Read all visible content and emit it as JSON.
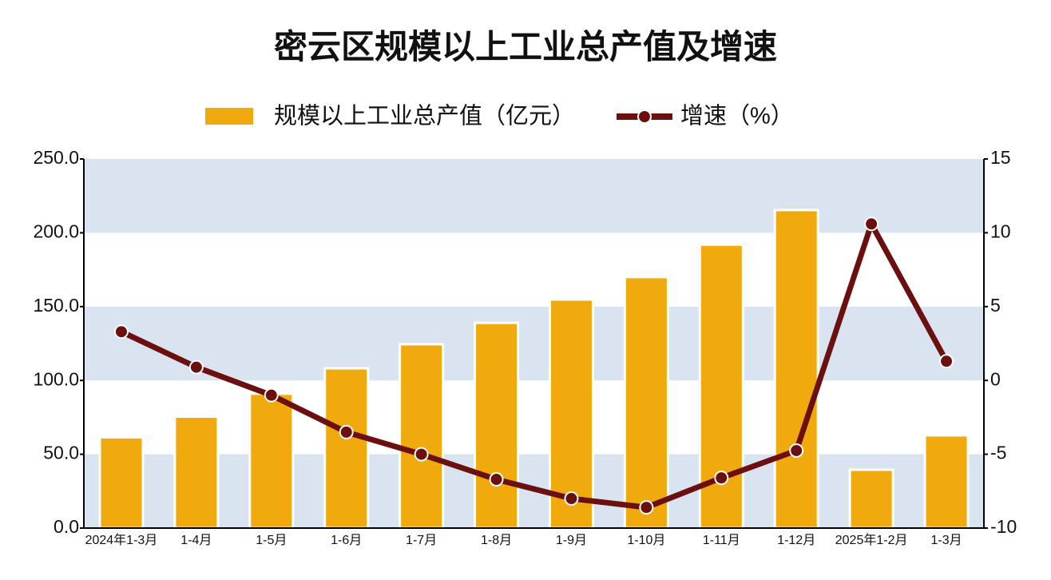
{
  "chart_data": {
    "type": "bar",
    "title": "密云区规模以上工业总产值及增速",
    "categories": [
      "2024年1-3月",
      "1-4月",
      "1-5月",
      "1-6月",
      "1-7月",
      "1-8月",
      "1-9月",
      "1-10月",
      "1-11月",
      "1-12月",
      "2025年1-2月",
      "1-3月"
    ],
    "series": [
      {
        "name": "规模以上工业总产值（亿元）",
        "type": "bar",
        "color": "#f0aa0e",
        "values": [
          61.5,
          75.5,
          91,
          108.2,
          124.5,
          139,
          154.8,
          170,
          192,
          215.4,
          39.5,
          62.8
        ]
      },
      {
        "name": "增速（%）",
        "type": "line",
        "axis": "y2",
        "color": "#6b0f0f",
        "values": [
          3.3,
          0.9,
          -1.0,
          -3.5,
          -5.0,
          -6.7,
          -8.0,
          -8.6,
          -6.6,
          -4.75,
          10.6,
          1.3
        ]
      }
    ],
    "ylim": [
      0,
      250
    ],
    "yticks": [
      {
        "value": 0,
        "label": "0.0"
      },
      {
        "value": 50,
        "label": "50.0"
      },
      {
        "value": 100,
        "label": "100.0"
      },
      {
        "value": 150,
        "label": "150.0"
      },
      {
        "value": 200,
        "label": "200.0"
      },
      {
        "value": 250,
        "label": "250.0"
      }
    ],
    "y2lim": [
      -10,
      15
    ],
    "y2ticks": [
      -10,
      -5,
      0,
      5,
      10,
      15
    ],
    "band_color": "#d9e4f0"
  }
}
